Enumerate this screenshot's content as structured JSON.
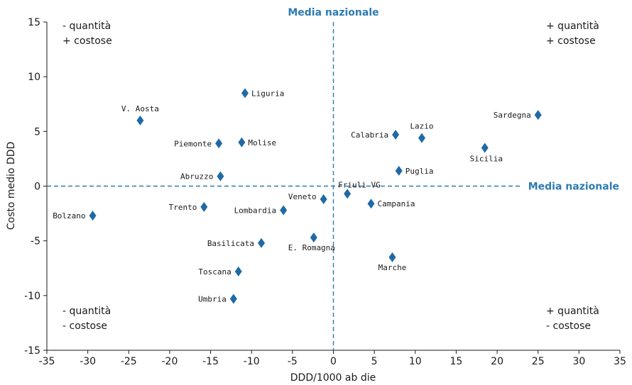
{
  "chart_data": {
    "type": "scatter",
    "xlabel": "DDD/1000 ab die",
    "ylabel": "Costo medio DDD",
    "xlim": [
      -35,
      35
    ],
    "ylim": [
      -15,
      15
    ],
    "xticks": [
      -35,
      -30,
      -25,
      -20,
      -15,
      -10,
      -5,
      0,
      5,
      10,
      15,
      20,
      25,
      30,
      35
    ],
    "yticks": [
      -15,
      -10,
      -5,
      0,
      5,
      10,
      15
    ],
    "grid": false,
    "marker": "diamond",
    "color": "#1f6aa5",
    "ref_color": "#2c7bb0",
    "reference_lines": {
      "vertical_label": "Media nazionale",
      "horizontal_label": "Media nazionale"
    },
    "quadrant_labels": {
      "top_left": [
        "- quantità",
        "+ costose"
      ],
      "top_right": [
        "+ quantità",
        "+ costose"
      ],
      "bottom_left": [
        "- quantità",
        "- costose"
      ],
      "bottom_right": [
        "+ quantità",
        "- costose"
      ]
    },
    "points": [
      {
        "label": "Liguria",
        "x": -10.8,
        "y": 8.5
      },
      {
        "label": "V. Aosta",
        "x": -23.6,
        "y": 6.0
      },
      {
        "label": "Piemonte",
        "x": -14.0,
        "y": 3.9
      },
      {
        "label": "Molise",
        "x": -11.2,
        "y": 4.0
      },
      {
        "label": "Abruzzo",
        "x": -13.8,
        "y": 0.9
      },
      {
        "label": "Trento",
        "x": -15.8,
        "y": -1.9
      },
      {
        "label": "Bolzano",
        "x": -29.4,
        "y": -2.7
      },
      {
        "label": "Lombardia",
        "x": -6.1,
        "y": -2.2
      },
      {
        "label": "Veneto",
        "x": -1.2,
        "y": -1.2
      },
      {
        "label": "Basilicata",
        "x": -8.8,
        "y": -5.2
      },
      {
        "label": "E. Romagna",
        "x": -2.4,
        "y": -4.7
      },
      {
        "label": "Toscana",
        "x": -11.6,
        "y": -7.8
      },
      {
        "label": "Umbria",
        "x": -12.2,
        "y": -10.3
      },
      {
        "label": "Friuli VG",
        "x": 1.7,
        "y": -0.7
      },
      {
        "label": "Campania",
        "x": 4.6,
        "y": -1.6
      },
      {
        "label": "Calabria",
        "x": 7.6,
        "y": 4.7
      },
      {
        "label": "Lazio",
        "x": 10.8,
        "y": 4.4
      },
      {
        "label": "Puglia",
        "x": 8.0,
        "y": 1.4
      },
      {
        "label": "Marche",
        "x": 7.2,
        "y": -6.5
      },
      {
        "label": "Sicilia",
        "x": 18.5,
        "y": 3.5
      },
      {
        "label": "Sardegna",
        "x": 25.0,
        "y": 6.5
      }
    ]
  }
}
